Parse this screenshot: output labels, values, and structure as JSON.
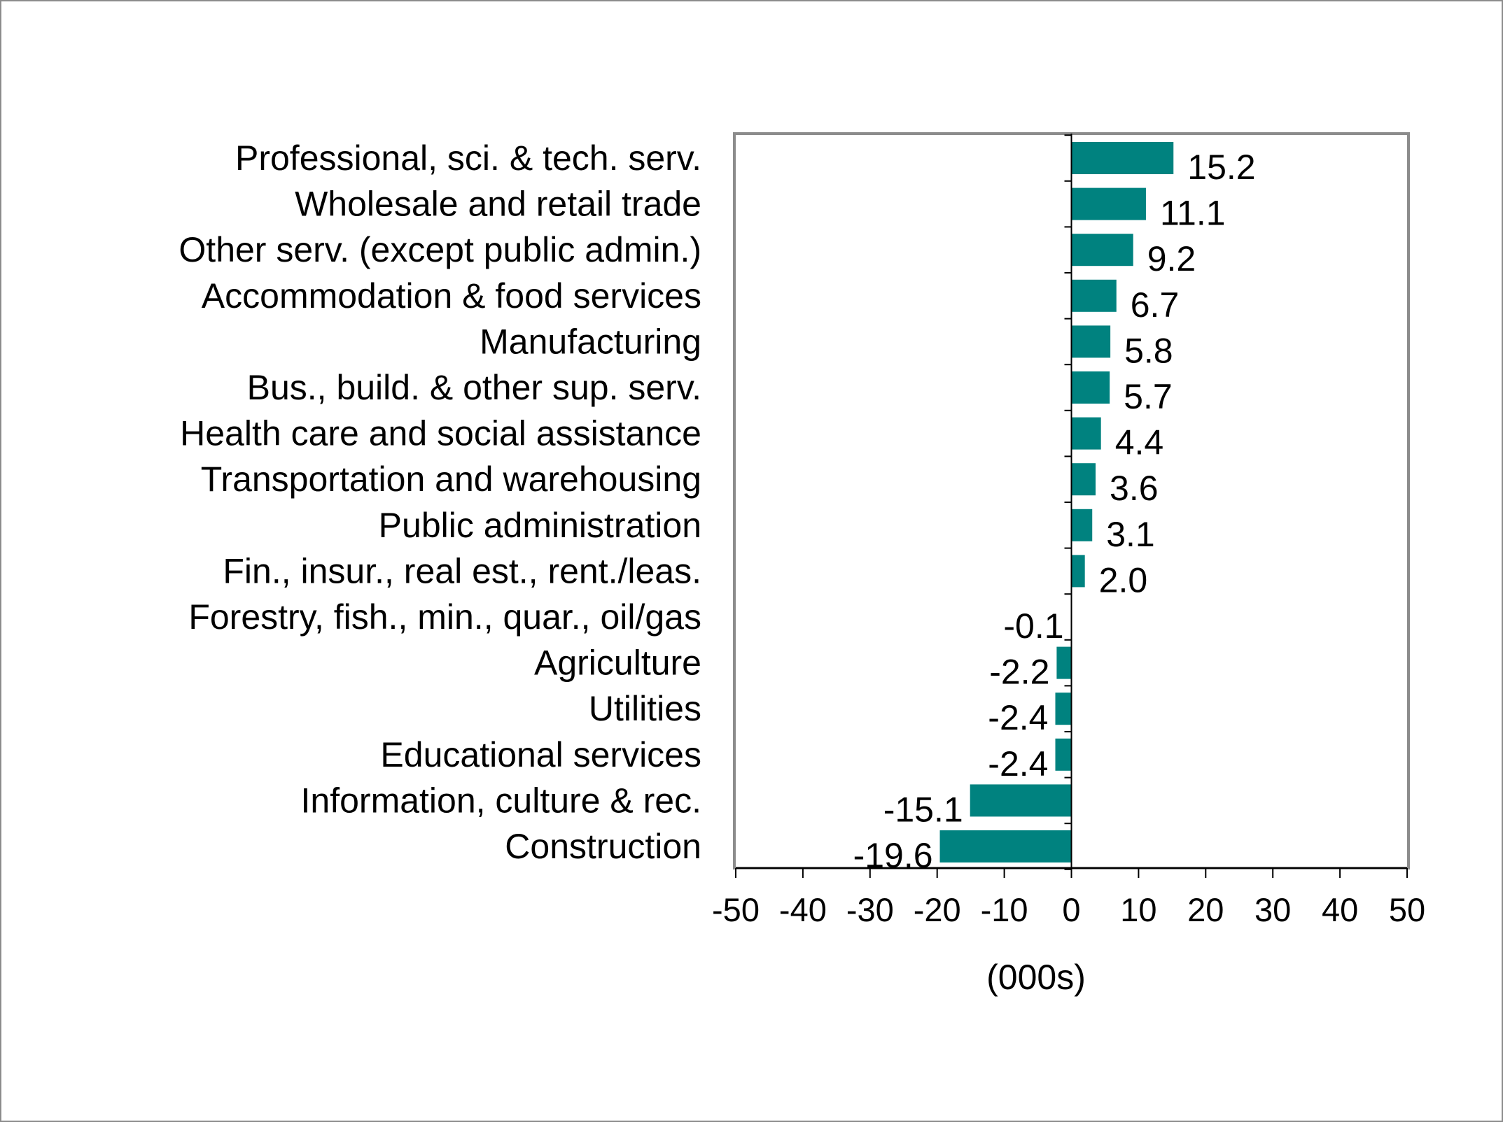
{
  "chart_data": {
    "type": "bar",
    "orientation": "horizontal",
    "categories": [
      "Professional, sci. & tech. serv.",
      "Wholesale and retail trade",
      "Other serv. (except public admin.)",
      "Accommodation & food services",
      "Manufacturing",
      "Bus., build. & other sup. serv.",
      "Health care and social assistance",
      "Transportation and warehousing",
      "Public administration",
      "Fin., insur., real est., rent./leas.",
      "Forestry, fish., min., quar., oil/gas",
      "Agriculture",
      "Utilities",
      "Educational services",
      "Information, culture & rec.",
      "Construction"
    ],
    "values": [
      15.2,
      11.1,
      9.2,
      6.7,
      5.8,
      5.7,
      4.4,
      3.6,
      3.1,
      2.0,
      -0.1,
      -2.2,
      -2.4,
      -2.4,
      -15.1,
      -19.6
    ],
    "value_labels": [
      "15.2",
      "11.1",
      "9.2",
      "6.7",
      "5.8",
      "5.7",
      "4.4",
      "3.6",
      "3.1",
      "2.0",
      "-0.1",
      "-2.2",
      "-2.4",
      "-2.4",
      "-15.1",
      "-19.6"
    ],
    "xlim": [
      -50,
      50
    ],
    "x_ticks": [
      -50,
      -40,
      -30,
      -20,
      -10,
      0,
      10,
      20,
      30,
      40,
      50
    ],
    "x_tick_labels": [
      "-50",
      "-40",
      "-30",
      "-20",
      "-10",
      "0",
      "10",
      "20",
      "30",
      "40",
      "50"
    ],
    "xlabel": "(000s)",
    "title": "",
    "grid": false,
    "legend": "none",
    "colors": {
      "bar": "#00827f",
      "plot_border": "#8c8c8c",
      "frame_border": "#8c8c8c",
      "axis": "#000000"
    }
  }
}
